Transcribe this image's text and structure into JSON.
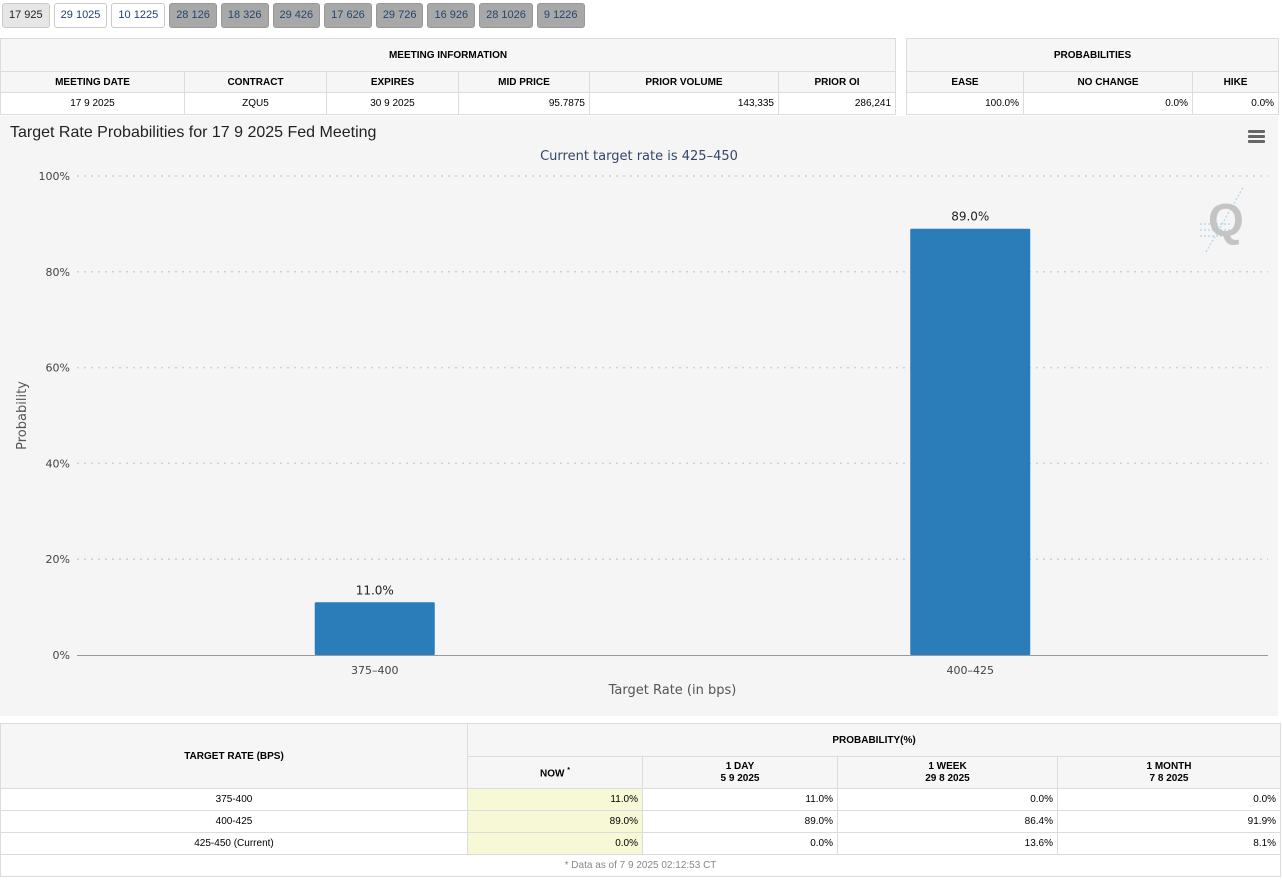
{
  "tabs": [
    {
      "label": "17 925",
      "state": "active"
    },
    {
      "label": "29 1025",
      "state": "normal"
    },
    {
      "label": "10 1225",
      "state": "normal"
    },
    {
      "label": "28 126",
      "state": "dim"
    },
    {
      "label": "18 326",
      "state": "dim"
    },
    {
      "label": "29 426",
      "state": "dim"
    },
    {
      "label": "17 626",
      "state": "dim"
    },
    {
      "label": "29 726",
      "state": "dim"
    },
    {
      "label": "16 926",
      "state": "dim"
    },
    {
      "label": "28 1026",
      "state": "dim"
    },
    {
      "label": "9 1226",
      "state": "dim"
    }
  ],
  "meeting_info": {
    "title": "MEETING INFORMATION",
    "headers": [
      "MEETING DATE",
      "CONTRACT",
      "EXPIRES",
      "MID PRICE",
      "PRIOR VOLUME",
      "PRIOR OI"
    ],
    "row": [
      "17 9 2025",
      "ZQU5",
      "30 9 2025",
      "95.7875",
      "143,335",
      "286,241"
    ]
  },
  "probabilities": {
    "title": "PROBABILITIES",
    "headers": [
      "EASE",
      "NO CHANGE",
      "HIKE"
    ],
    "row": [
      "100.0%",
      "0.0%",
      "0.0%"
    ]
  },
  "chart": {
    "title": "Target Rate Probabilities for 17 9 2025 Fed Meeting",
    "subtitle": "Current target rate is 425–450",
    "bar_color": "#2a7db8"
  },
  "chart_data": {
    "type": "bar",
    "title": "Target Rate Probabilities for 17 9 2025 Fed Meeting",
    "subtitle": "Current target rate is 425–450",
    "categories": [
      "375–400",
      "400–425"
    ],
    "values": [
      11.0,
      89.0
    ],
    "data_labels": [
      "11.0%",
      "89.0%"
    ],
    "xlabel": "Target Rate (in bps)",
    "ylabel": "Probability",
    "ylim": [
      0,
      100
    ],
    "yticks": [
      "0%",
      "20%",
      "40%",
      "60%",
      "80%",
      "100%"
    ],
    "grid": true
  },
  "rate_table": {
    "col_target": "TARGET RATE (BPS)",
    "col_prob": "PROBABILITY(%)",
    "sub_headers": [
      {
        "label": "NOW",
        "date": ""
      },
      {
        "label": "1 DAY",
        "date": "5 9 2025"
      },
      {
        "label": "1 WEEK",
        "date": "29 8 2025"
      },
      {
        "label": "1 MONTH",
        "date": "7 8 2025"
      }
    ],
    "now_marker": "*",
    "rows": [
      {
        "rate": "375-400",
        "values": [
          "11.0%",
          "11.0%",
          "0.0%",
          "0.0%"
        ]
      },
      {
        "rate": "400-425",
        "values": [
          "89.0%",
          "89.0%",
          "86.4%",
          "91.9%"
        ]
      },
      {
        "rate": "425-450 (Current)",
        "values": [
          "0.0%",
          "0.0%",
          "13.6%",
          "8.1%"
        ]
      }
    ],
    "footnote": "* Data as of 7 9 2025 02:12:53 CT"
  }
}
